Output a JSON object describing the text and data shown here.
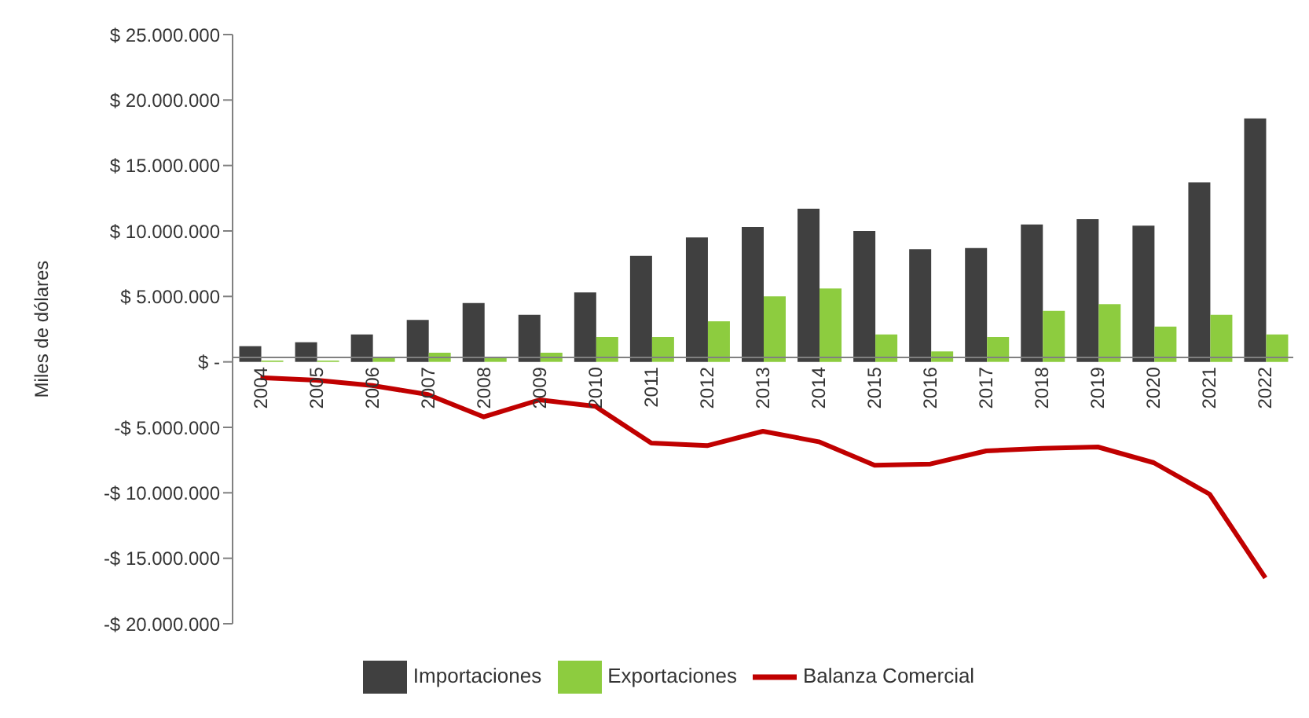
{
  "chart_data": {
    "type": "bar",
    "ylabel": "Miles de dólares",
    "categories": [
      "2004",
      "2005",
      "2006",
      "2007",
      "2008",
      "2009",
      "2010",
      "2011",
      "2012",
      "2013",
      "2014",
      "2015",
      "2016",
      "2017",
      "2018",
      "2019",
      "2020",
      "2021",
      "2022"
    ],
    "series": [
      {
        "name": "Importaciones",
        "color": "#404040",
        "values": [
          1200000,
          1500000,
          2100000,
          3200000,
          4500000,
          3600000,
          5300000,
          8100000,
          9500000,
          10300000,
          11700000,
          10000000,
          8600000,
          8700000,
          10500000,
          10900000,
          10400000,
          13700000,
          18600000
        ]
      },
      {
        "name": "Exportaciones",
        "color": "#8dcc3f",
        "values": [
          100000,
          100000,
          300000,
          700000,
          300000,
          700000,
          1900000,
          1900000,
          3100000,
          5000000,
          5600000,
          2100000,
          800000,
          1900000,
          3900000,
          4400000,
          2700000,
          3600000,
          2100000
        ]
      },
      {
        "name": "Balanza Comercial",
        "type": "line",
        "color": "#c00000",
        "values": [
          -1200000,
          -1400000,
          -1800000,
          -2500000,
          -4200000,
          -2900000,
          -3400000,
          -6200000,
          -6400000,
          -5300000,
          -6100000,
          -7900000,
          -7800000,
          -6800000,
          -6600000,
          -6500000,
          -7700000,
          -10100000,
          -16500000
        ]
      }
    ],
    "ylim": [
      -20000000,
      25000000
    ],
    "yticks": [
      {
        "value": -20000000,
        "label": "-$ 20.000.000"
      },
      {
        "value": -15000000,
        "label": "-$ 15.000.000"
      },
      {
        "value": -10000000,
        "label": "-$ 10.000.000"
      },
      {
        "value": -5000000,
        "label": "-$ 5.000.000"
      },
      {
        "value": 0,
        "label": "$ -"
      },
      {
        "value": 5000000,
        "label": "$ 5.000.000"
      },
      {
        "value": 10000000,
        "label": "$ 10.000.000"
      },
      {
        "value": 15000000,
        "label": "$ 15.000.000"
      },
      {
        "value": 20000000,
        "label": "$ 20.000.000"
      },
      {
        "value": 25000000,
        "label": "$ 25.000.000"
      }
    ],
    "grid": false,
    "legend": "bottom",
    "marker": "none",
    "line_style": "solid"
  }
}
